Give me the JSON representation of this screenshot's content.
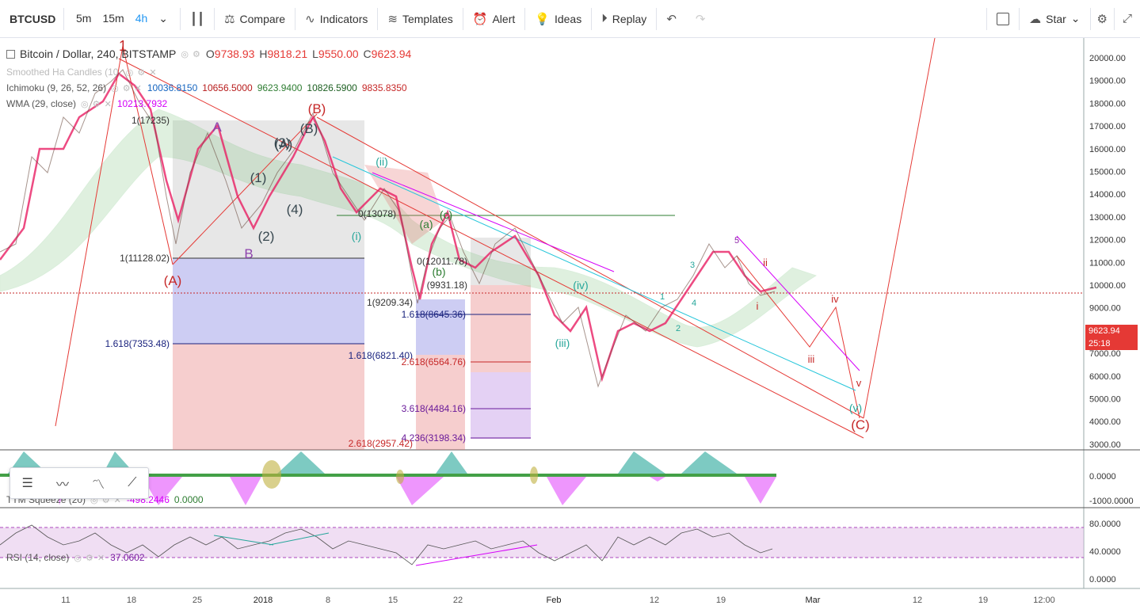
{
  "toolbar": {
    "symbol": "BTCUSD",
    "timeframes": [
      "5m",
      "15m",
      "4h"
    ],
    "active_timeframe": "4h",
    "compare": "Compare",
    "indicators": "Indicators",
    "templates": "Templates",
    "alert": "Alert",
    "ideas": "Ideas",
    "replay": "Replay",
    "star": "Star"
  },
  "legend": {
    "title": "Bitcoin / Dollar, 240, BITSTAMP",
    "o_label": "O",
    "o": "9738.93",
    "h_label": "H",
    "h": "9818.21",
    "l_label": "L",
    "l": "9550.00",
    "c_label": "C",
    "c": "9623.94",
    "smoothed": "Smoothed Ha Candles (10,",
    "ichimoku_name": "Ichimoku (9, 26, 52, 26)",
    "ichimoku_values": [
      "10036.8150",
      "10656.5000",
      "9623.9400",
      "10826.5900",
      "9835.8350"
    ],
    "wma_name": "WMA (29, close)",
    "wma_value": "10213.7932",
    "squeeze_name": "TTM Squeeze (20)",
    "squeeze_values": [
      "-498.2446",
      "0.0000"
    ],
    "rsi_name": "RSI (14, close)",
    "rsi_value": "37.0602"
  },
  "price_axis": [
    "20000.00",
    "19000.00",
    "18000.00",
    "17000.00",
    "16000.00",
    "15000.00",
    "14000.00",
    "13000.00",
    "12000.00",
    "11000.00",
    "10000.00",
    "9000.00",
    "8000.00",
    "7000.00",
    "6000.00",
    "5000.00",
    "4000.00",
    "3000.00"
  ],
  "squeeze_axis": [
    "0.0000",
    "-1000.0000"
  ],
  "rsi_axis": [
    "80.0000",
    "40.0000",
    "0.0000"
  ],
  "current_price": "9623.94",
  "countdown": "25:18",
  "time_axis": [
    "11",
    "18",
    "25",
    "2018",
    "8",
    "15",
    "22",
    "Feb",
    "12",
    "19",
    "Mar",
    "12",
    "19",
    "12:00"
  ],
  "fib_labels": [
    "1(11128.02)",
    "1.618(7353.48)",
    "1(9209.34)",
    "1.618(8645.36)",
    "1.618(6821.40)",
    "2.618(6564.76)",
    "3.618(4484.16)",
    "4.236(3198.34)",
    "2.618(2957.42)",
    "(9931.18)",
    "0(13078)",
    "0(12011.78)",
    "1(17235)"
  ],
  "wave_labels": [
    "1",
    "(A)",
    "(B)",
    "(C)",
    "A",
    "B",
    "(B)",
    "(A)",
    "(1)",
    "(2)",
    "(3)",
    "(4)",
    "(i)",
    "(ii)",
    "(iii)",
    "(iv)",
    "(v)",
    "(a)",
    "(b)",
    "(c)",
    "i",
    "ii",
    "iii",
    "iv",
    "v",
    "1",
    "2",
    "3",
    "4",
    "5"
  ],
  "drawing_tools": [
    "lines-icon",
    "wave-12345-icon",
    "wave-abc-icon",
    "trend-line-icon"
  ]
}
